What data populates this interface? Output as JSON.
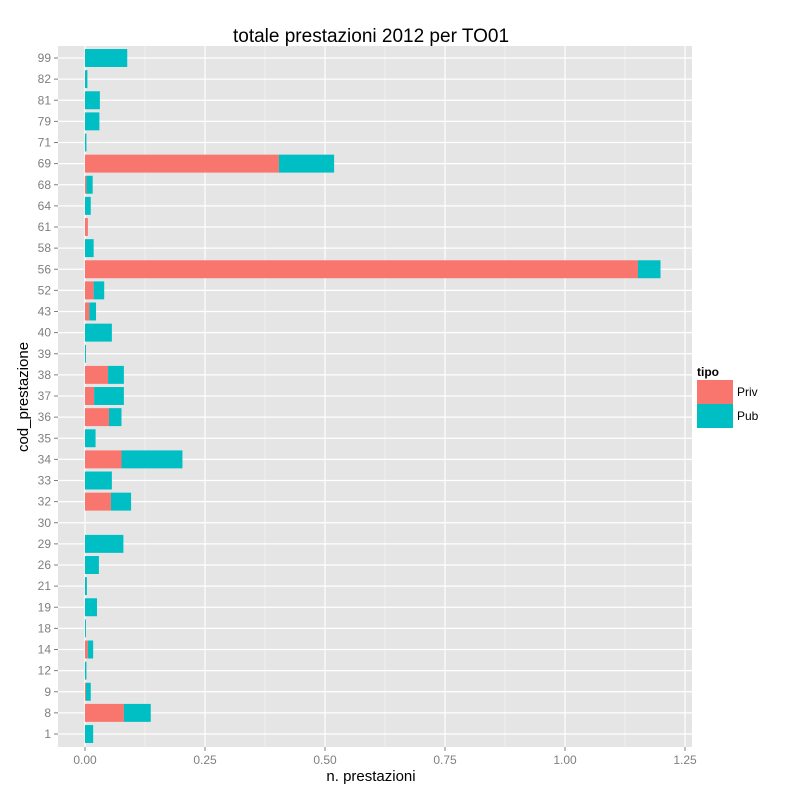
{
  "chart_data": {
    "type": "bar",
    "orientation": "horizontal",
    "stacked": true,
    "title": "totale prestazioni 2012 per TO01",
    "xlabel": "n. prestazioni",
    "ylabel": "cod_prestazione",
    "xlim": [
      0,
      1.25
    ],
    "x_ticks": [
      "0.00",
      "0.25",
      "0.50",
      "0.75",
      "1.00",
      "1.25"
    ],
    "x_tick_values": [
      0,
      0.25,
      0.5,
      0.75,
      1.0,
      1.25
    ],
    "grid": true,
    "legend": {
      "title": "tipo",
      "position": "right"
    },
    "categories": [
      "1",
      "8",
      "9",
      "12",
      "14",
      "18",
      "19",
      "21",
      "26",
      "29",
      "30",
      "32",
      "33",
      "34",
      "35",
      "36",
      "37",
      "38",
      "39",
      "40",
      "43",
      "52",
      "56",
      "58",
      "61",
      "64",
      "68",
      "69",
      "71",
      "79",
      "81",
      "82",
      "99"
    ],
    "series": [
      {
        "name": "Priv",
        "color": "#F8766D",
        "values": [
          0,
          0.081,
          0.002,
          0,
          0.006,
          0,
          0,
          0,
          0,
          0,
          0,
          0.054,
          0,
          0.076,
          0,
          0.05,
          0.019,
          0.048,
          0,
          0,
          0.009,
          0.018,
          1.152,
          0,
          0.006,
          0,
          0.003,
          0.404,
          0,
          0,
          0,
          0,
          0
        ]
      },
      {
        "name": "Pub",
        "color": "#00BFC4",
        "values": [
          0.017,
          0.056,
          0.01,
          0.003,
          0.011,
          0.002,
          0.025,
          0.004,
          0.029,
          0.08,
          0,
          0.042,
          0.056,
          0.127,
          0.022,
          0.026,
          0.062,
          0.033,
          0.002,
          0.056,
          0.014,
          0.022,
          0.047,
          0.018,
          0,
          0.012,
          0.013,
          0.115,
          0.003,
          0.03,
          0.031,
          0.005,
          0.088
        ]
      }
    ]
  }
}
